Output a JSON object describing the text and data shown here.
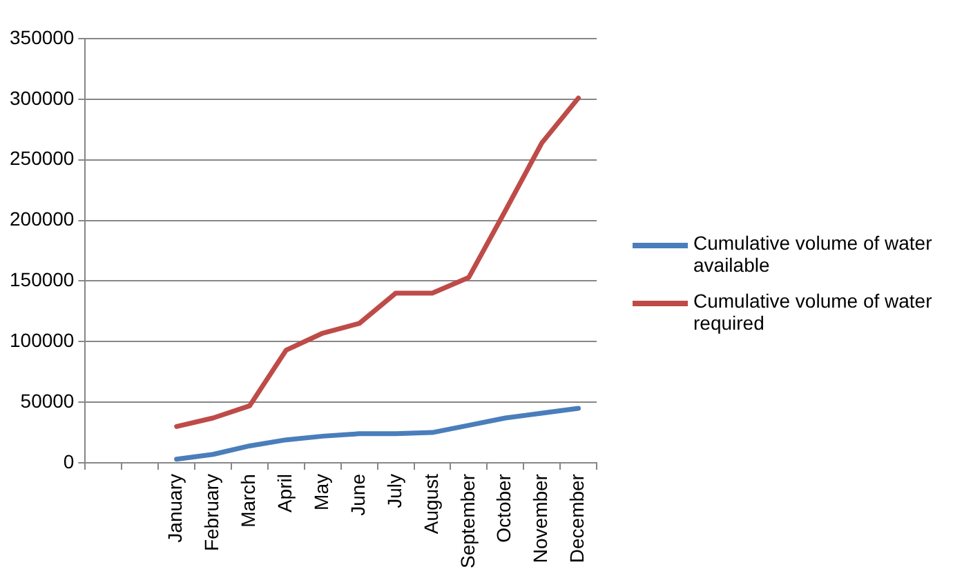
{
  "chart_data": {
    "type": "line",
    "categories": [
      null,
      null,
      "January",
      "February",
      "March",
      "April",
      "May",
      "June",
      "July",
      "August",
      "September",
      "October",
      "November",
      "December"
    ],
    "series": [
      {
        "name": "Cumulative volume of water available",
        "color": "#4a7ebb",
        "values": [
          null,
          null,
          3000,
          7000,
          14000,
          19000,
          22000,
          24000,
          24000,
          25000,
          31000,
          37000,
          41000,
          45000
        ]
      },
      {
        "name": "Cumulative volume of water required",
        "color": "#be4b48",
        "values": [
          null,
          null,
          30000,
          37000,
          47000,
          93000,
          107000,
          115000,
          140000,
          140000,
          153000,
          208000,
          264000,
          301000
        ]
      }
    ],
    "ylim": [
      0,
      350000
    ],
    "yticks": [
      0,
      50000,
      100000,
      150000,
      200000,
      250000,
      300000,
      350000
    ],
    "grid": "y",
    "legend": "right",
    "marker": "none",
    "line_style": "solid"
  }
}
